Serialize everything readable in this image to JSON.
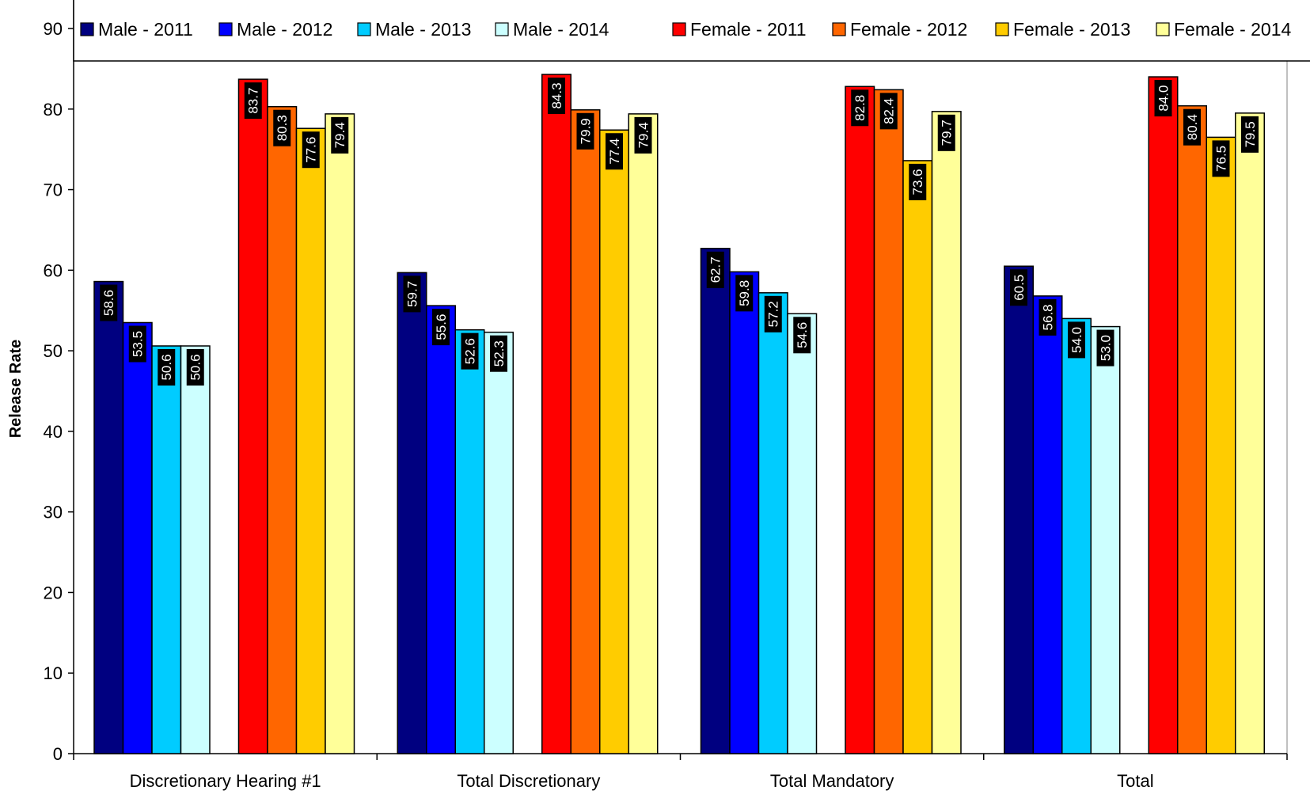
{
  "chart_data": {
    "type": "bar",
    "title": "",
    "xlabel": "",
    "ylabel": "Release Rate",
    "ylim": [
      0,
      90
    ],
    "yticks": [
      0,
      10,
      20,
      30,
      40,
      50,
      60,
      70,
      80,
      90
    ],
    "grid": false,
    "legend_position": "top",
    "categories": [
      "Discretionary Hearing #1",
      "Total Discretionary",
      "Total Mandatory",
      "Total"
    ],
    "series": [
      {
        "name": "Male - 2011",
        "color": "#000080",
        "values": [
          58.6,
          59.7,
          62.7,
          60.5
        ]
      },
      {
        "name": "Male - 2012",
        "color": "#0000ff",
        "values": [
          53.5,
          55.6,
          59.8,
          56.8
        ]
      },
      {
        "name": "Male - 2013",
        "color": "#00ccff",
        "values": [
          50.6,
          52.6,
          57.2,
          54.0
        ]
      },
      {
        "name": "Male - 2014",
        "color": "#ccffff",
        "values": [
          50.6,
          52.3,
          54.6,
          53.0
        ]
      },
      {
        "name": "Female - 2011",
        "color": "#ff0000",
        "values": [
          83.7,
          84.3,
          82.8,
          84.0
        ]
      },
      {
        "name": "Female - 2012",
        "color": "#ff6600",
        "values": [
          80.3,
          79.9,
          82.4,
          80.4
        ]
      },
      {
        "name": "Female - 2013",
        "color": "#ffcc00",
        "values": [
          77.6,
          77.4,
          73.6,
          76.5
        ]
      },
      {
        "name": "Female - 2014",
        "color": "#ffff99",
        "values": [
          79.4,
          79.4,
          79.7,
          79.5
        ]
      }
    ],
    "data_labels": [
      [
        "58.6",
        "59.7",
        "62.7",
        "60.5"
      ],
      [
        "53.5",
        "55.6",
        "59.8",
        "56.8"
      ],
      [
        "50.6",
        "52.6",
        "57.2",
        "54.0"
      ],
      [
        "50.6",
        "52.3",
        "54.6",
        "53.0"
      ],
      [
        "83.7",
        "84.3",
        "82.8",
        "84.0"
      ],
      [
        "80.3",
        "79.9",
        "82.4",
        "80.4"
      ],
      [
        "77.6",
        "77.4",
        "73.6",
        "76.5"
      ],
      [
        "79.4",
        "79.4",
        "79.7",
        "79.5"
      ]
    ]
  }
}
